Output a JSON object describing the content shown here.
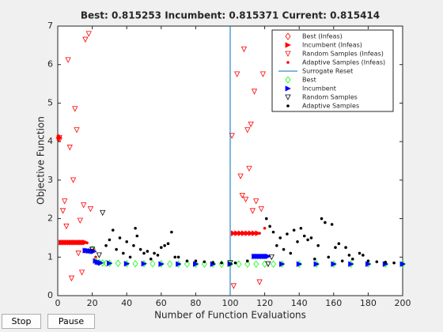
{
  "chart_data": {
    "type": "scatter",
    "title": "Best: 0.815253 Incumbent: 0.815371 Current: 0.815414",
    "x_label": "Number of Function Evaluations",
    "y_label": "Objective Function",
    "xlim": [
      0,
      200
    ],
    "ylim": [
      0,
      7
    ],
    "xticks": [
      0,
      20,
      40,
      60,
      80,
      100,
      120,
      140,
      160,
      180,
      200
    ],
    "yticks": [
      0,
      1,
      2,
      3,
      4,
      5,
      6,
      7
    ],
    "legend": "top-right",
    "series": [
      {
        "name": "Best (Infeas)",
        "color": "#ff0000",
        "marker": "diamond",
        "filled": false,
        "x": [
          0.5,
          1
        ],
        "y": [
          4.1,
          4.08
        ]
      },
      {
        "name": "Incumbent (Infeas)",
        "color": "#ff0000",
        "marker": "right",
        "filled": true,
        "x": [
          1,
          2,
          3,
          4,
          5,
          6,
          7,
          8,
          9,
          10,
          11,
          12,
          13,
          14,
          15,
          16,
          102,
          104,
          106,
          108,
          110,
          112,
          114,
          116
        ],
        "y": [
          4.1,
          1.38,
          1.38,
          1.38,
          1.38,
          1.38,
          1.38,
          1.38,
          1.38,
          1.38,
          1.38,
          1.38,
          1.38,
          1.38,
          1.38,
          1.38,
          1.62,
          1.62,
          1.62,
          1.62,
          1.62,
          1.62,
          1.62,
          1.62
        ]
      },
      {
        "name": "Random Samples (Infeas)",
        "color": "#ff0000",
        "marker": "down",
        "filled": false,
        "x": [
          1,
          3,
          4,
          5,
          6,
          7,
          8,
          9,
          10,
          11,
          12,
          13,
          14,
          15,
          16,
          18,
          19,
          101,
          102,
          104,
          106,
          107,
          108,
          109,
          110,
          111,
          112,
          113,
          114,
          115,
          117,
          118,
          119
        ],
        "y": [
          4.1,
          2.2,
          2.45,
          1.8,
          6.12,
          3.85,
          0.45,
          3.0,
          4.85,
          4.3,
          1.1,
          1.95,
          0.6,
          2.35,
          6.65,
          6.8,
          2.25,
          4.15,
          0.25,
          5.75,
          3.1,
          2.6,
          6.4,
          2.5,
          4.3,
          3.3,
          4.45,
          2.2,
          5.3,
          2.45,
          0.35,
          2.25,
          5.75
        ]
      },
      {
        "name": "Adaptive Samples (Infeas)",
        "color": "#ff0000",
        "marker": "dot",
        "filled": true,
        "x": [
          2,
          4,
          6,
          8,
          10,
          12,
          14,
          16,
          17,
          21,
          22,
          103,
          105,
          107,
          109,
          111,
          113,
          115,
          117,
          120
        ],
        "y": [
          1.37,
          1.4,
          1.37,
          1.39,
          1.37,
          1.4,
          1.37,
          1.39,
          1.37,
          1.2,
          1.0,
          1.62,
          1.62,
          1.62,
          1.62,
          1.62,
          1.62,
          1.62,
          1.62,
          1.75
        ]
      },
      {
        "name": "Surrogate Reset",
        "color": "#0072bd",
        "marker": "vline",
        "x": [
          100
        ]
      },
      {
        "name": "Best",
        "color": "#00ff00",
        "marker": "diamond",
        "filled": false,
        "x": [
          20,
          22,
          24,
          26,
          28,
          30,
          35,
          40,
          45,
          50,
          55,
          60,
          65,
          70,
          75,
          80,
          85,
          90,
          95,
          100,
          105,
          110,
          115,
          120,
          125,
          130,
          140,
          150,
          160,
          170,
          180,
          190,
          200
        ],
        "y": [
          1.2,
          0.9,
          0.86,
          0.85,
          0.84,
          0.84,
          0.84,
          0.83,
          0.83,
          0.83,
          0.83,
          0.83,
          0.82,
          0.82,
          0.82,
          0.82,
          0.82,
          0.82,
          0.82,
          0.82,
          0.82,
          0.82,
          0.82,
          0.82,
          0.82,
          0.82,
          0.82,
          0.82,
          0.82,
          0.82,
          0.82,
          0.82,
          0.82
        ]
      },
      {
        "name": "Incumbent",
        "color": "#0000ff",
        "marker": "right",
        "filled": true,
        "x": [
          16,
          17,
          18,
          19,
          20,
          21,
          22,
          23,
          24,
          25,
          30,
          40,
          50,
          60,
          70,
          80,
          90,
          100,
          114,
          115,
          116,
          117,
          118,
          119,
          120,
          121,
          122,
          130,
          140,
          150,
          160,
          170,
          180,
          190,
          200
        ],
        "y": [
          1.17,
          1.17,
          1.16,
          1.16,
          1.15,
          1.15,
          0.9,
          0.87,
          0.86,
          0.85,
          0.84,
          0.83,
          0.83,
          0.82,
          0.82,
          0.82,
          0.82,
          0.82,
          1.02,
          1.02,
          1.02,
          1.02,
          1.02,
          1.02,
          1.02,
          1.02,
          1.02,
          0.82,
          0.82,
          0.82,
          0.82,
          0.82,
          0.82,
          0.82,
          0.82
        ]
      },
      {
        "name": "Random Samples",
        "color": "#000000",
        "marker": "down",
        "filled": false,
        "x": [
          20,
          24,
          26,
          100,
          122,
          124
        ],
        "y": [
          1.2,
          1.05,
          2.15,
          0.85,
          0.82,
          1.0
        ]
      },
      {
        "name": "Adaptive Samples",
        "color": "#000000",
        "marker": "dot",
        "filled": true,
        "x": [
          28,
          30,
          32,
          34,
          36,
          38,
          40,
          42,
          44,
          45,
          46,
          48,
          50,
          52,
          54,
          56,
          58,
          60,
          62,
          64,
          66,
          68,
          70,
          75,
          80,
          85,
          90,
          95,
          103,
          110,
          121,
          123,
          125,
          127,
          129,
          131,
          133,
          135,
          137,
          139,
          141,
          143,
          145,
          147,
          149,
          151,
          153,
          155,
          157,
          159,
          161,
          163,
          165,
          167,
          169,
          171,
          175,
          177,
          180,
          185,
          190,
          195
        ],
        "y": [
          1.3,
          1.45,
          1.7,
          1.2,
          1.5,
          1.1,
          1.4,
          1.0,
          1.3,
          1.75,
          1.55,
          1.2,
          1.1,
          1.15,
          0.95,
          1.1,
          1.05,
          1.25,
          1.3,
          1.35,
          1.65,
          1.0,
          1.0,
          0.9,
          0.9,
          0.88,
          0.86,
          0.85,
          0.85,
          0.9,
          2.0,
          1.8,
          1.65,
          1.3,
          1.5,
          1.2,
          1.6,
          1.1,
          1.7,
          1.4,
          1.75,
          1.55,
          1.45,
          1.5,
          0.95,
          1.3,
          2.0,
          1.9,
          1.0,
          1.85,
          1.25,
          1.35,
          0.9,
          1.25,
          1.05,
          0.95,
          1.1,
          1.05,
          0.9,
          0.88,
          0.87,
          0.85
        ]
      }
    ]
  },
  "buttons": [
    "Stop",
    "Pause"
  ]
}
